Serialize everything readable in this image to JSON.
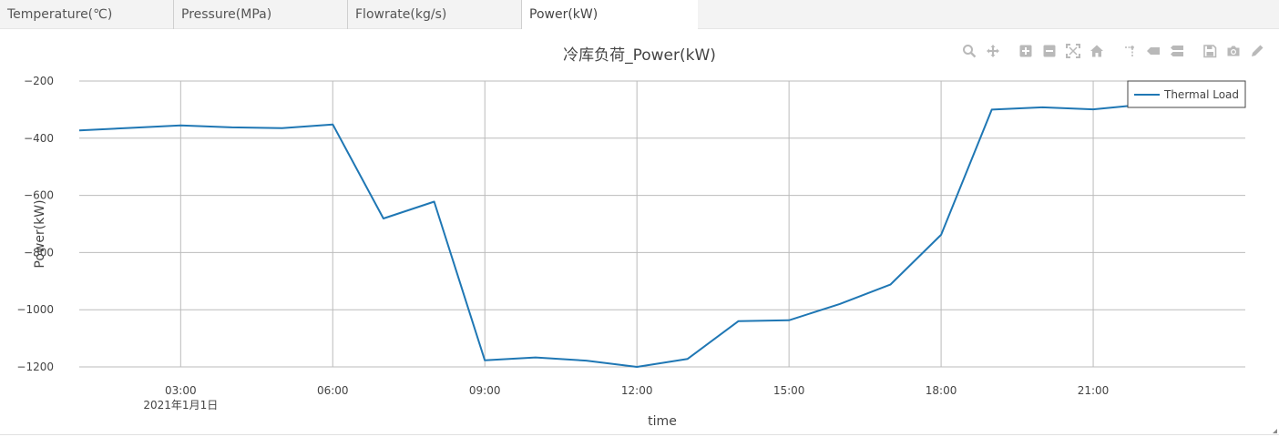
{
  "tabs": [
    {
      "label": "Temperature(℃)"
    },
    {
      "label": "Pressure(MPa)"
    },
    {
      "label": "Flowrate(kg/s)"
    },
    {
      "label": "Power(kW)"
    }
  ],
  "active_tab": 3,
  "modebar": [
    "zoom-icon",
    "pan-icon",
    "zoom-in-icon",
    "zoom-out-icon",
    "autoscale-icon",
    "reset-axes-icon",
    "spike-lines-icon",
    "hover-closest-icon",
    "hover-compare-icon",
    "save-icon",
    "camera-icon",
    "edit-icon"
  ],
  "colors": {
    "line": "#1f77b4",
    "grid": "#bbbbbb",
    "modebar": "#b9b9b9"
  },
  "chart_data": {
    "type": "line",
    "title": "冷库负荷_Power(kW)",
    "xlabel": "time",
    "ylabel": "Power(kW)",
    "x": [
      "01:00",
      "02:00",
      "03:00",
      "04:00",
      "05:00",
      "06:00",
      "07:00",
      "08:00",
      "09:00",
      "10:00",
      "11:00",
      "12:00",
      "13:00",
      "14:00",
      "15:00",
      "16:00",
      "17:00",
      "18:00",
      "19:00",
      "20:00",
      "21:00",
      "22:00",
      "23:00"
    ],
    "x_hours": [
      1,
      2,
      3,
      4,
      5,
      6,
      7,
      8,
      9,
      10,
      11,
      12,
      13,
      14,
      15,
      16,
      17,
      18,
      19,
      20,
      21,
      22,
      23
    ],
    "xlim_hours": [
      1,
      24
    ],
    "xticks": [
      {
        "hour": 3,
        "label": "03:00",
        "sublabel": "2021年1月1日"
      },
      {
        "hour": 6,
        "label": "06:00"
      },
      {
        "hour": 9,
        "label": "09:00"
      },
      {
        "hour": 12,
        "label": "12:00"
      },
      {
        "hour": 15,
        "label": "15:00"
      },
      {
        "hour": 18,
        "label": "18:00"
      },
      {
        "hour": 21,
        "label": "21:00"
      }
    ],
    "ylim": [
      -1200,
      -200
    ],
    "yticks": [
      {
        "value": -200,
        "label": "−200"
      },
      {
        "value": -400,
        "label": "−400"
      },
      {
        "value": -600,
        "label": "−600"
      },
      {
        "value": -800,
        "label": "−800"
      },
      {
        "value": -1000,
        "label": "−1000"
      },
      {
        "value": -1200,
        "label": "−1200"
      }
    ],
    "grid": true,
    "legend_position": "top-right",
    "series": [
      {
        "name": "Thermal Load",
        "values": [
          -373,
          -364,
          -355,
          -362,
          -365,
          -352,
          -681,
          -622,
          -1177,
          -1167,
          -1178,
          -1200,
          -1172,
          -1040,
          -1037,
          -980,
          -912,
          -738,
          -300,
          -292,
          -299,
          -282,
          -260
        ]
      }
    ]
  }
}
